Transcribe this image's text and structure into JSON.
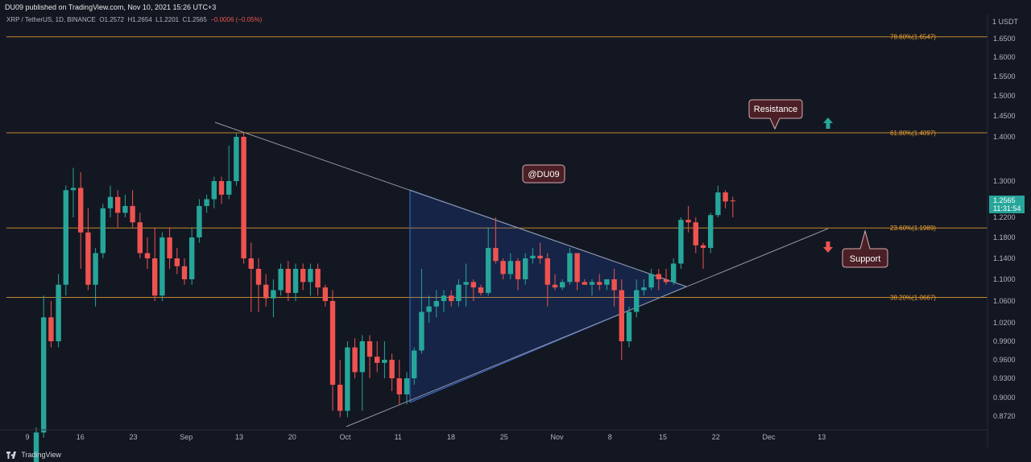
{
  "header": {
    "publisher_line": "DU09 published on TradingView.com, Nov 10, 2021 15:26 UTC+3"
  },
  "symbol": {
    "name": "XRP / TetherUS, 1D, BINANCE",
    "open": "O1.2572",
    "high": "H1.2654",
    "low": "L1.2201",
    "close": "C1.2565",
    "change": "−0.0006 (−0.05%)"
  },
  "footer": {
    "brand": "TradingView"
  },
  "colors": {
    "up": "#26a69a",
    "down": "#ef5350",
    "fib": "#f0a232",
    "triangle": "#2962ff",
    "background": "#131722"
  },
  "chart_data": {
    "type": "candlestick",
    "price_axis": {
      "unit_label": "1 USDT",
      "ticks": [
        "1.6500",
        "1.6000",
        "1.5500",
        "1.5000",
        "1.4500",
        "1.4000",
        "1.3000",
        "1.2200",
        "1.1800",
        "1.1400",
        "1.1000",
        "1.0600",
        "1.0200",
        "0.9900",
        "0.9600",
        "0.9300",
        "0.9000",
        "0.8720"
      ],
      "last_price": "1.2565",
      "countdown": "11:31:54"
    },
    "time_axis": {
      "ticks": [
        "9",
        "16",
        "23",
        "Sep",
        "13",
        "20",
        "Oct",
        "11",
        "18",
        "25",
        "Nov",
        "8",
        "15",
        "22",
        "Dec",
        "13"
      ]
    },
    "fib_levels": [
      {
        "label": "78.60%(1.6547)",
        "price": 1.6547
      },
      {
        "label": "61.80%(1.4097)",
        "price": 1.4097
      },
      {
        "label": "23.60%(1.1989)",
        "price": 1.1989
      },
      {
        "label": "38.20%(1.0667)",
        "price": 1.0667
      }
    ],
    "candles": [
      {
        "o": 0.78,
        "h": 0.85,
        "l": 0.76,
        "c": 0.84
      },
      {
        "o": 0.84,
        "h": 1.07,
        "l": 0.83,
        "c": 1.03
      },
      {
        "o": 1.03,
        "h": 1.06,
        "l": 0.98,
        "c": 0.99
      },
      {
        "o": 0.99,
        "h": 1.11,
        "l": 0.98,
        "c": 1.09
      },
      {
        "o": 1.09,
        "h": 1.29,
        "l": 1.07,
        "c": 1.28
      },
      {
        "o": 1.28,
        "h": 1.33,
        "l": 1.22,
        "c": 1.285
      },
      {
        "o": 1.285,
        "h": 1.32,
        "l": 1.12,
        "c": 1.19
      },
      {
        "o": 1.19,
        "h": 1.24,
        "l": 1.08,
        "c": 1.09
      },
      {
        "o": 1.09,
        "h": 1.16,
        "l": 1.05,
        "c": 1.15
      },
      {
        "o": 1.15,
        "h": 1.25,
        "l": 1.14,
        "c": 1.24
      },
      {
        "o": 1.24,
        "h": 1.29,
        "l": 1.22,
        "c": 1.265
      },
      {
        "o": 1.265,
        "h": 1.28,
        "l": 1.2,
        "c": 1.23
      },
      {
        "o": 1.23,
        "h": 1.27,
        "l": 1.22,
        "c": 1.245
      },
      {
        "o": 1.245,
        "h": 1.28,
        "l": 1.2,
        "c": 1.21
      },
      {
        "o": 1.21,
        "h": 1.23,
        "l": 1.14,
        "c": 1.15
      },
      {
        "o": 1.15,
        "h": 1.18,
        "l": 1.12,
        "c": 1.14
      },
      {
        "o": 1.14,
        "h": 1.2,
        "l": 1.06,
        "c": 1.07
      },
      {
        "o": 1.07,
        "h": 1.19,
        "l": 1.06,
        "c": 1.18
      },
      {
        "o": 1.18,
        "h": 1.2,
        "l": 1.12,
        "c": 1.14
      },
      {
        "o": 1.14,
        "h": 1.16,
        "l": 1.11,
        "c": 1.125
      },
      {
        "o": 1.125,
        "h": 1.14,
        "l": 1.09,
        "c": 1.1
      },
      {
        "o": 1.1,
        "h": 1.2,
        "l": 1.09,
        "c": 1.18
      },
      {
        "o": 1.18,
        "h": 1.26,
        "l": 1.17,
        "c": 1.245
      },
      {
        "o": 1.245,
        "h": 1.27,
        "l": 1.23,
        "c": 1.26
      },
      {
        "o": 1.26,
        "h": 1.31,
        "l": 1.24,
        "c": 1.3
      },
      {
        "o": 1.3,
        "h": 1.31,
        "l": 1.25,
        "c": 1.27
      },
      {
        "o": 1.27,
        "h": 1.38,
        "l": 1.26,
        "c": 1.3
      },
      {
        "o": 1.3,
        "h": 1.41,
        "l": 1.29,
        "c": 1.4
      },
      {
        "o": 1.4,
        "h": 1.41,
        "l": 1.13,
        "c": 1.14
      },
      {
        "o": 1.14,
        "h": 1.17,
        "l": 1.04,
        "c": 1.12
      },
      {
        "o": 1.12,
        "h": 1.14,
        "l": 1.04,
        "c": 1.09
      },
      {
        "o": 1.09,
        "h": 1.11,
        "l": 1.05,
        "c": 1.065
      },
      {
        "o": 1.065,
        "h": 1.1,
        "l": 1.03,
        "c": 1.08
      },
      {
        "o": 1.08,
        "h": 1.13,
        "l": 1.07,
        "c": 1.12
      },
      {
        "o": 1.12,
        "h": 1.135,
        "l": 1.06,
        "c": 1.075
      },
      {
        "o": 1.075,
        "h": 1.13,
        "l": 1.06,
        "c": 1.12
      },
      {
        "o": 1.12,
        "h": 1.13,
        "l": 1.08,
        "c": 1.095
      },
      {
        "o": 1.095,
        "h": 1.13,
        "l": 1.07,
        "c": 1.12
      },
      {
        "o": 1.12,
        "h": 1.13,
        "l": 1.07,
        "c": 1.085
      },
      {
        "o": 1.085,
        "h": 1.09,
        "l": 1.05,
        "c": 1.06
      },
      {
        "o": 1.06,
        "h": 1.08,
        "l": 0.88,
        "c": 0.92
      },
      {
        "o": 0.92,
        "h": 0.96,
        "l": 0.87,
        "c": 0.88
      },
      {
        "o": 0.88,
        "h": 0.99,
        "l": 0.87,
        "c": 0.98
      },
      {
        "o": 0.98,
        "h": 0.995,
        "l": 0.93,
        "c": 0.94
      },
      {
        "o": 0.94,
        "h": 1.0,
        "l": 0.88,
        "c": 0.99
      },
      {
        "o": 0.99,
        "h": 1.0,
        "l": 0.93,
        "c": 0.965
      },
      {
        "o": 0.965,
        "h": 0.99,
        "l": 0.94,
        "c": 0.955
      },
      {
        "o": 0.955,
        "h": 0.99,
        "l": 0.93,
        "c": 0.96
      },
      {
        "o": 0.96,
        "h": 0.97,
        "l": 0.91,
        "c": 0.93
      },
      {
        "o": 0.93,
        "h": 0.96,
        "l": 0.89,
        "c": 0.905
      },
      {
        "o": 0.905,
        "h": 0.94,
        "l": 0.89,
        "c": 0.93
      },
      {
        "o": 0.93,
        "h": 0.98,
        "l": 0.92,
        "c": 0.975
      },
      {
        "o": 0.975,
        "h": 1.12,
        "l": 0.97,
        "c": 1.04
      },
      {
        "o": 1.04,
        "h": 1.07,
        "l": 1.02,
        "c": 1.05
      },
      {
        "o": 1.05,
        "h": 1.08,
        "l": 1.03,
        "c": 1.06
      },
      {
        "o": 1.06,
        "h": 1.08,
        "l": 1.04,
        "c": 1.07
      },
      {
        "o": 1.07,
        "h": 1.08,
        "l": 1.05,
        "c": 1.06
      },
      {
        "o": 1.06,
        "h": 1.1,
        "l": 1.05,
        "c": 1.09
      },
      {
        "o": 1.09,
        "h": 1.13,
        "l": 1.05,
        "c": 1.095
      },
      {
        "o": 1.095,
        "h": 1.1,
        "l": 1.06,
        "c": 1.085
      },
      {
        "o": 1.085,
        "h": 1.09,
        "l": 1.07,
        "c": 1.075
      },
      {
        "o": 1.075,
        "h": 1.2,
        "l": 1.07,
        "c": 1.16
      },
      {
        "o": 1.16,
        "h": 1.22,
        "l": 1.13,
        "c": 1.135
      },
      {
        "o": 1.135,
        "h": 1.14,
        "l": 1.1,
        "c": 1.11
      },
      {
        "o": 1.11,
        "h": 1.15,
        "l": 1.1,
        "c": 1.135
      },
      {
        "o": 1.135,
        "h": 1.14,
        "l": 1.08,
        "c": 1.1
      },
      {
        "o": 1.1,
        "h": 1.15,
        "l": 1.09,
        "c": 1.14
      },
      {
        "o": 1.14,
        "h": 1.16,
        "l": 1.13,
        "c": 1.145
      },
      {
        "o": 1.145,
        "h": 1.17,
        "l": 1.13,
        "c": 1.14
      },
      {
        "o": 1.14,
        "h": 1.15,
        "l": 1.05,
        "c": 1.09
      },
      {
        "o": 1.09,
        "h": 1.11,
        "l": 1.08,
        "c": 1.085
      },
      {
        "o": 1.085,
        "h": 1.1,
        "l": 1.08,
        "c": 1.095
      },
      {
        "o": 1.095,
        "h": 1.16,
        "l": 1.09,
        "c": 1.15
      },
      {
        "o": 1.15,
        "h": 1.15,
        "l": 1.08,
        "c": 1.095
      },
      {
        "o": 1.095,
        "h": 1.1,
        "l": 1.09,
        "c": 1.09
      },
      {
        "o": 1.09,
        "h": 1.1,
        "l": 1.07,
        "c": 1.095
      },
      {
        "o": 1.095,
        "h": 1.11,
        "l": 1.08,
        "c": 1.09
      },
      {
        "o": 1.09,
        "h": 1.1,
        "l": 1.08,
        "c": 1.1
      },
      {
        "o": 1.1,
        "h": 1.12,
        "l": 1.05,
        "c": 1.08
      },
      {
        "o": 1.08,
        "h": 1.1,
        "l": 0.96,
        "c": 0.99
      },
      {
        "o": 0.99,
        "h": 1.05,
        "l": 0.98,
        "c": 1.04
      },
      {
        "o": 1.04,
        "h": 1.1,
        "l": 1.03,
        "c": 1.08
      },
      {
        "o": 1.08,
        "h": 1.1,
        "l": 1.07,
        "c": 1.085
      },
      {
        "o": 1.085,
        "h": 1.12,
        "l": 1.08,
        "c": 1.11
      },
      {
        "o": 1.11,
        "h": 1.12,
        "l": 1.08,
        "c": 1.1
      },
      {
        "o": 1.1,
        "h": 1.12,
        "l": 1.09,
        "c": 1.095
      },
      {
        "o": 1.095,
        "h": 1.14,
        "l": 1.09,
        "c": 1.13
      },
      {
        "o": 1.13,
        "h": 1.22,
        "l": 1.12,
        "c": 1.215
      },
      {
        "o": 1.215,
        "h": 1.245,
        "l": 1.19,
        "c": 1.21
      },
      {
        "o": 1.21,
        "h": 1.22,
        "l": 1.15,
        "c": 1.165
      },
      {
        "o": 1.165,
        "h": 1.17,
        "l": 1.12,
        "c": 1.16
      },
      {
        "o": 1.16,
        "h": 1.23,
        "l": 1.15,
        "c": 1.225
      },
      {
        "o": 1.225,
        "h": 1.29,
        "l": 1.22,
        "c": 1.275
      },
      {
        "o": 1.275,
        "h": 1.28,
        "l": 1.24,
        "c": 1.255
      },
      {
        "o": 1.2572,
        "h": 1.2654,
        "l": 1.2201,
        "c": 1.2565
      }
    ],
    "annotations": [
      {
        "label": "Resistance"
      },
      {
        "label": "@DU09"
      },
      {
        "label": "Support"
      }
    ]
  }
}
